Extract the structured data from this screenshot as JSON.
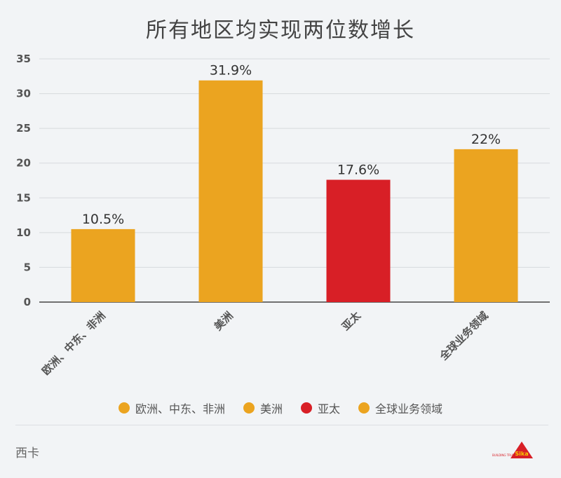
{
  "title": "所有地区均实现两位数增长",
  "source": "西卡",
  "logo_text": "BUILDING TRUST",
  "colors": {
    "orange": "#eba420",
    "red": "#d81f26",
    "grid": "#d7dadd",
    "axis": "#444444"
  },
  "chart_data": {
    "type": "bar",
    "title": "所有地区均实现两位数增长",
    "categories": [
      "欧洲、中东、非洲",
      "美洲",
      "亚太",
      "全球业务领域"
    ],
    "values": [
      10.5,
      31.9,
      17.6,
      22
    ],
    "data_labels": [
      "10.5%",
      "31.9%",
      "17.6%",
      "22%"
    ],
    "bar_colors": [
      "#eba420",
      "#eba420",
      "#d81f26",
      "#eba420"
    ],
    "ylim": [
      0,
      35
    ],
    "yticks": [
      0,
      5,
      10,
      15,
      20,
      25,
      30,
      35
    ],
    "grid": true,
    "legend_position": "bottom",
    "legend": [
      {
        "label": "欧洲、中东、非洲",
        "color": "#eba420"
      },
      {
        "label": "美洲",
        "color": "#eba420"
      },
      {
        "label": "亚太",
        "color": "#d81f26"
      },
      {
        "label": "全球业务领域",
        "color": "#eba420"
      }
    ]
  }
}
